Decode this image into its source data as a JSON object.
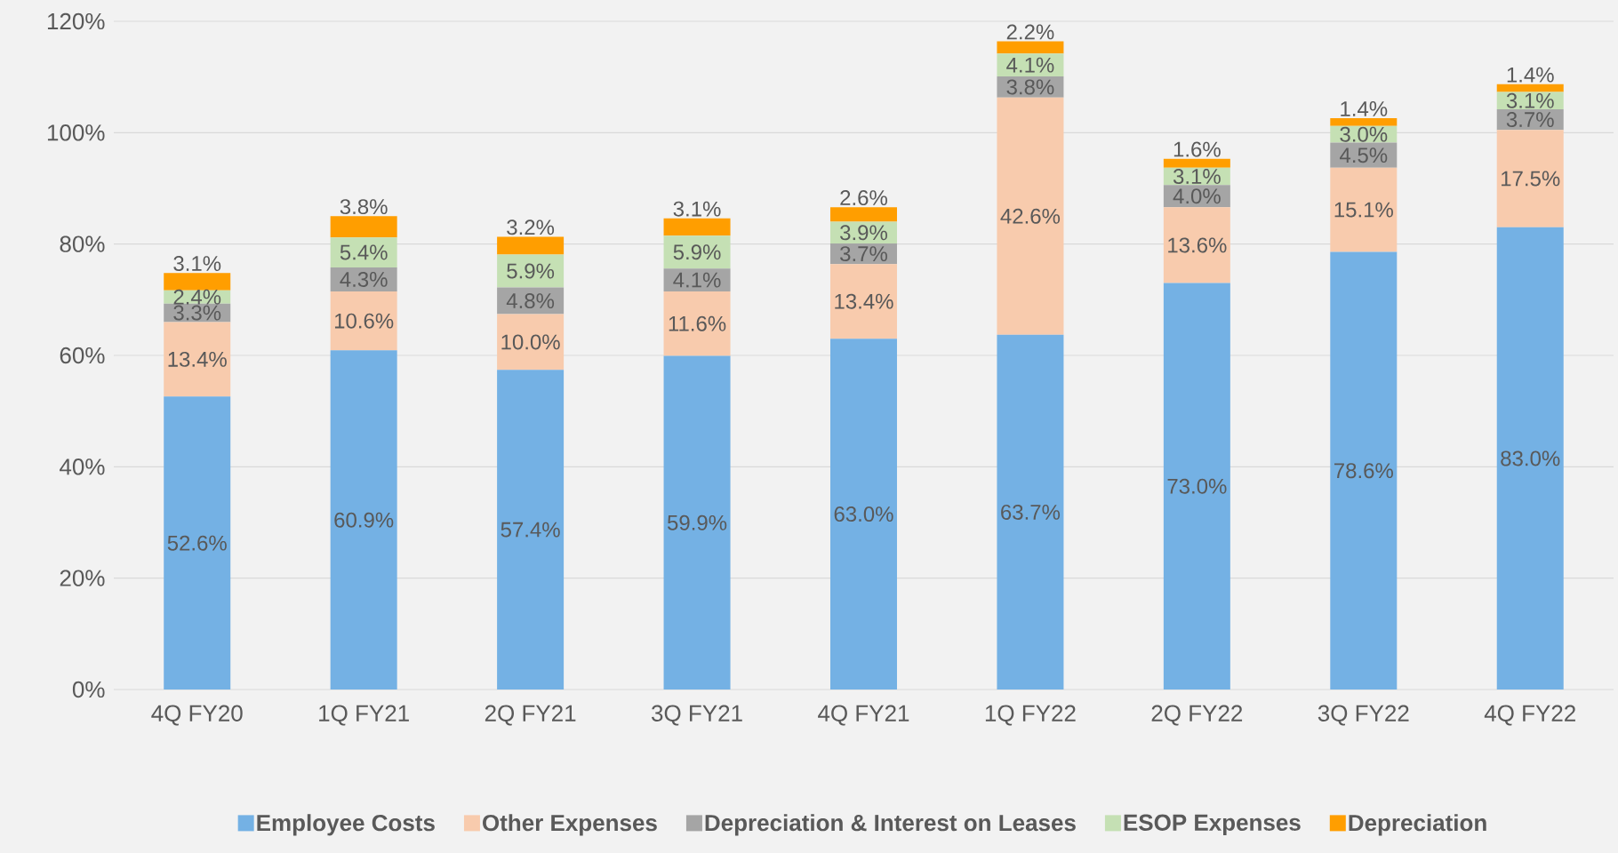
{
  "chart_data": {
    "type": "bar",
    "stacked": true,
    "categories": [
      "4Q FY20",
      "1Q FY21",
      "2Q FY21",
      "3Q FY21",
      "4Q FY21",
      "1Q FY22",
      "2Q FY22",
      "3Q FY22",
      "4Q FY22"
    ],
    "series": [
      {
        "name": "Employee Costs",
        "color": "#74b1e4",
        "values": [
          52.6,
          60.9,
          57.4,
          59.9,
          63.0,
          63.7,
          73.0,
          78.6,
          83.0
        ],
        "value_labels": [
          "52.6%",
          "60.9%",
          "57.4%",
          "59.9%",
          "63.0%",
          "63.7%",
          "73.0%",
          "78.6%",
          "83.0%"
        ]
      },
      {
        "name": "Other Expenses",
        "color": "#f8cbad",
        "values": [
          13.4,
          10.6,
          10.0,
          11.6,
          13.4,
          42.6,
          13.6,
          15.1,
          17.5
        ],
        "value_labels": [
          "13.4%",
          "10.6%",
          "10.0%",
          "11.6%",
          "13.4%",
          "42.6%",
          "13.6%",
          "15.1%",
          "17.5%"
        ]
      },
      {
        "name": "Depreciation & Interest on Leases",
        "color": "#a5a5a5",
        "values": [
          3.3,
          4.3,
          4.8,
          4.1,
          3.7,
          3.8,
          4.0,
          4.5,
          3.7
        ],
        "value_labels": [
          "3.3%",
          "4.3%",
          "4.8%",
          "4.1%",
          "3.7%",
          "3.8%",
          "4.0%",
          "4.5%",
          "3.7%"
        ]
      },
      {
        "name": "ESOP Expenses",
        "color": "#c5e0b4",
        "values": [
          2.4,
          5.4,
          5.9,
          5.9,
          3.9,
          4.1,
          3.1,
          3.0,
          3.1
        ],
        "value_labels": [
          "2.4%",
          "5.4%",
          "5.9%",
          "5.9%",
          "3.9%",
          "4.1%",
          "3.1%",
          "3.0%",
          "3.1%"
        ]
      },
      {
        "name": "Depreciation",
        "color": "#ff9e00",
        "values": [
          3.1,
          3.8,
          3.2,
          3.1,
          2.6,
          2.2,
          1.6,
          1.4,
          1.4
        ],
        "value_labels": [
          "3.1%",
          "3.8%",
          "3.2%",
          "3.1%",
          "2.6%",
          "2.2%",
          "1.6%",
          "1.4%",
          "1.4%"
        ]
      }
    ],
    "ylim": [
      0,
      120
    ],
    "yticks": [
      {
        "value": 0,
        "label": "0%"
      },
      {
        "value": 20,
        "label": "20%"
      },
      {
        "value": 40,
        "label": "40%"
      },
      {
        "value": 60,
        "label": "60%"
      },
      {
        "value": 80,
        "label": "80%"
      },
      {
        "value": 100,
        "label": "100%"
      },
      {
        "value": 120,
        "label": "120%"
      }
    ],
    "grid": "y",
    "legend": "bottom"
  }
}
